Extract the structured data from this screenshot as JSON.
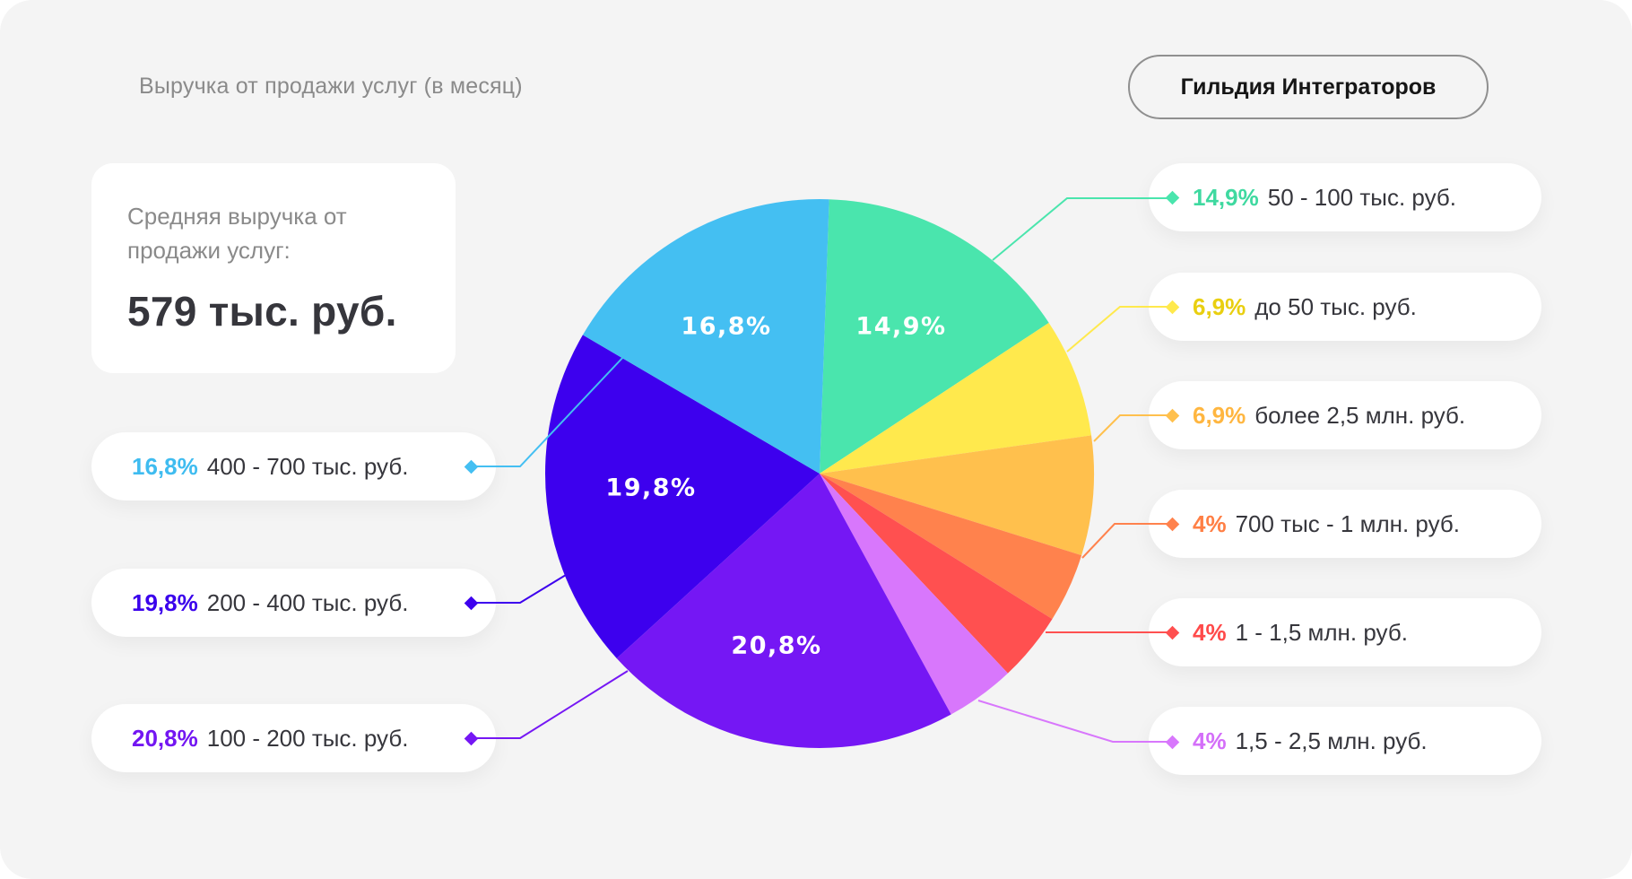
{
  "header": {
    "title": "Выручка от продажи услуг (в месяц)",
    "brand": "Гильдия Интеграторов"
  },
  "average_card": {
    "label": "Средняя выручка от продажи услуг:",
    "value": "579 тыс. руб."
  },
  "colors": {
    "background": "#f4f4f4",
    "card": "#ffffff",
    "text_dark": "#36363c",
    "text_muted": "#8a8a8a"
  },
  "slices": [
    {
      "id": "s50_100",
      "percent_label": "14,9%",
      "value": 14.9,
      "range": "50 - 100 тыс. руб.",
      "color": "#4ae5ad",
      "pct_color": "#3fd9a0",
      "inner_label": "14,9%"
    },
    {
      "id": "s0_50",
      "percent_label": "6,9%",
      "value": 6.9,
      "range": "до 50 тыс. руб.",
      "color": "#ffe94d",
      "pct_color": "#e9cf10",
      "inner_label": ""
    },
    {
      "id": "s2500plus",
      "percent_label": "6,9%",
      "value": 6.9,
      "range": "более 2,5 млн. руб.",
      "color": "#ffc04d",
      "pct_color": "#ffb640",
      "inner_label": ""
    },
    {
      "id": "s700_1000",
      "percent_label": "4%",
      "value": 4,
      "range": "700 тыс - 1 млн. руб.",
      "color": "#ff824d",
      "pct_color": "#ff7f45",
      "inner_label": ""
    },
    {
      "id": "s1000_1500",
      "percent_label": "4%",
      "value": 4,
      "range": "1 - 1,5 млн. руб.",
      "color": "#ff5050",
      "pct_color": "#ff4a4a",
      "inner_label": ""
    },
    {
      "id": "s1500_2500",
      "percent_label": "4%",
      "value": 4,
      "range": "1,5 - 2,5 млн. руб.",
      "color": "#d877fc",
      "pct_color": "#d46ff9",
      "inner_label": ""
    },
    {
      "id": "s100_200",
      "percent_label": "20,8%",
      "value": 20.8,
      "range": "100 - 200 тыс. руб.",
      "color": "#7517f4",
      "pct_color": "#7316f2",
      "inner_label": "20,8%"
    },
    {
      "id": "s200_400",
      "percent_label": "19,8%",
      "value": 19.8,
      "range": "200 - 400 тыс. руб.",
      "color": "#3d00ee",
      "pct_color": "#3a00ec",
      "inner_label": "19,8%"
    },
    {
      "id": "s400_700",
      "percent_label": "16,8%",
      "value": 16.8,
      "range": "400 - 700 тыс. руб.",
      "color": "#44bff2",
      "pct_color": "#3fbcf0",
      "inner_label": "16,8%"
    }
  ],
  "legend_left": [
    {
      "percent": "16,8%",
      "range": "400 - 700 тыс. руб.",
      "color": "#3fbcf0"
    },
    {
      "percent": "19,8%",
      "range": "200 - 400 тыс. руб.",
      "color": "#3a00ec"
    },
    {
      "percent": "20,8%",
      "range": "100 - 200 тыс. руб.",
      "color": "#7316f2"
    }
  ],
  "legend_right": [
    {
      "percent": "14,9%",
      "range": "50 - 100 тыс. руб.",
      "color": "#3fd9a0"
    },
    {
      "percent": "6,9%",
      "range": "до 50 тыс. руб.",
      "color": "#e9cf10"
    },
    {
      "percent": "6,9%",
      "range": "более 2,5 млн. руб.",
      "color": "#ffb640"
    },
    {
      "percent": "4%",
      "range": "700 тыс - 1 млн. руб.",
      "color": "#ff7f45"
    },
    {
      "percent": "4%",
      "range": "1 - 1,5 млн. руб.",
      "color": "#ff4a4a"
    },
    {
      "percent": "4%",
      "range": "1,5 - 2,5 млн. руб.",
      "color": "#d46ff9"
    }
  ],
  "chart_data": {
    "type": "pie",
    "title": "Выручка от продажи услуг (в месяц)",
    "subtitle": "Средняя выручка от продажи услуг: 579 тыс. руб.",
    "categories": [
      "50 - 100 тыс. руб.",
      "до 50 тыс. руб.",
      "более 2,5 млн. руб.",
      "700 тыс - 1 млн. руб.",
      "1 - 1,5 млн. руб.",
      "1,5 - 2,5 млн. руб.",
      "100 - 200 тыс. руб.",
      "200 - 400 тыс. руб.",
      "400 - 700 тыс. руб."
    ],
    "values": [
      14.9,
      6.9,
      6.9,
      4,
      4,
      4,
      20.8,
      19.8,
      16.8
    ],
    "unit": "%",
    "legend_position": "both sides (callouts)",
    "start_angle_deg_clockwise_from_top": 2
  }
}
